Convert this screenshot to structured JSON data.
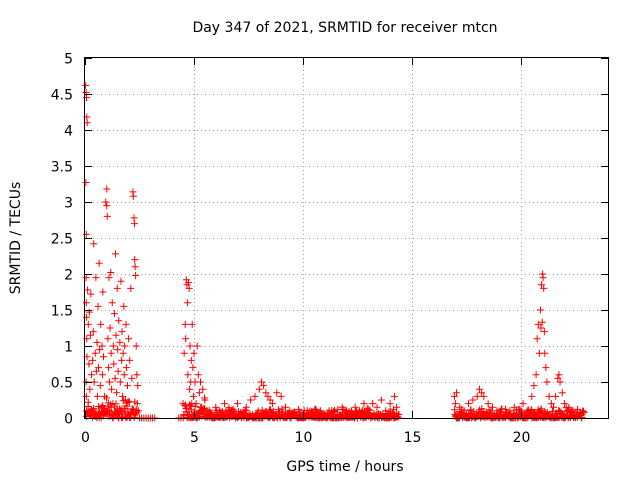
{
  "chart_data": {
    "type": "scatter",
    "title": "Day 347 of 2021, SRMTID for receiver mtcn",
    "xlabel": "GPS time / hours",
    "ylabel": "SRMTID / TECUs",
    "xlim": [
      0,
      24
    ],
    "ylim": [
      0,
      5
    ],
    "xticks": [
      {
        "value": 0,
        "label": "0"
      },
      {
        "value": 5,
        "label": "5"
      },
      {
        "value": 10,
        "label": "10"
      },
      {
        "value": 15,
        "label": "15"
      },
      {
        "value": 20,
        "label": "20"
      }
    ],
    "yticks": [
      {
        "value": 0,
        "label": "0"
      },
      {
        "value": 0.5,
        "label": "0.5"
      },
      {
        "value": 1,
        "label": "1"
      },
      {
        "value": 1.5,
        "label": "1.5"
      },
      {
        "value": 2,
        "label": "2"
      },
      {
        "value": 2.5,
        "label": "2.5"
      },
      {
        "value": 3,
        "label": "3"
      },
      {
        "value": 3.5,
        "label": "3.5"
      },
      {
        "value": 4,
        "label": "4"
      },
      {
        "value": 4.5,
        "label": "4.5"
      },
      {
        "value": 5,
        "label": "5"
      }
    ],
    "grid": true,
    "marker": "plus",
    "color": "#ff0000",
    "series": [
      {
        "name": "SRMTID",
        "points": [
          [
            0.03,
            4.62
          ],
          [
            0.05,
            4.52
          ],
          [
            0.07,
            4.45
          ],
          [
            0.08,
            4.18
          ],
          [
            0.1,
            4.1
          ],
          [
            0.04,
            3.27
          ],
          [
            0.06,
            2.55
          ],
          [
            0.05,
            1.95
          ],
          [
            0.06,
            1.6
          ],
          [
            0.07,
            1.4
          ],
          [
            0.08,
            1.1
          ],
          [
            0.09,
            0.85
          ],
          [
            0.05,
            0.5
          ],
          [
            0.06,
            0.3
          ],
          [
            0.07,
            0.1
          ],
          [
            0.08,
            0.02
          ],
          [
            0.12,
            1.78
          ],
          [
            0.15,
            1.3
          ],
          [
            0.18,
            0.75
          ],
          [
            0.2,
            1.47
          ],
          [
            0.22,
            0.4
          ],
          [
            0.25,
            1.15
          ],
          [
            0.27,
            1.72
          ],
          [
            0.3,
            0.6
          ],
          [
            0.32,
            0.1
          ],
          [
            0.35,
            0.8
          ],
          [
            0.38,
            1.2
          ],
          [
            0.4,
            2.42
          ],
          [
            0.42,
            0.5
          ],
          [
            0.45,
            0.05
          ],
          [
            0.47,
            0.9
          ],
          [
            0.5,
            1.95
          ],
          [
            0.52,
            0.65
          ],
          [
            0.55,
            1.05
          ],
          [
            0.57,
            0.3
          ],
          [
            0.6,
            1.55
          ],
          [
            0.62,
            0.7
          ],
          [
            0.65,
            2.15
          ],
          [
            0.67,
            0.95
          ],
          [
            0.7,
            0.45
          ],
          [
            0.72,
            1.3
          ],
          [
            0.75,
            0.15
          ],
          [
            0.78,
            1.0
          ],
          [
            0.8,
            0.6
          ],
          [
            0.82,
            1.75
          ],
          [
            0.85,
            0.85
          ],
          [
            0.9,
            0.3
          ],
          [
            0.95,
            3.0
          ],
          [
            1.0,
            3.18
          ],
          [
            1.0,
            2.95
          ],
          [
            1.02,
            2.8
          ],
          [
            1.05,
            1.1
          ],
          [
            1.08,
            0.7
          ],
          [
            1.1,
            1.95
          ],
          [
            1.12,
            0.5
          ],
          [
            1.15,
            1.25
          ],
          [
            1.18,
            2.02
          ],
          [
            1.2,
            0.9
          ],
          [
            1.22,
            0.4
          ],
          [
            1.25,
            1.6
          ],
          [
            1.28,
            0.2
          ],
          [
            1.3,
            1.0
          ],
          [
            1.32,
            0.75
          ],
          [
            1.35,
            1.45
          ],
          [
            1.38,
            0.55
          ],
          [
            1.4,
            2.28
          ],
          [
            1.42,
            1.15
          ],
          [
            1.45,
            0.35
          ],
          [
            1.48,
            1.8
          ],
          [
            1.5,
            0.95
          ],
          [
            1.52,
            0.65
          ],
          [
            1.55,
            1.35
          ],
          [
            1.58,
            0.1
          ],
          [
            1.6,
            1.05
          ],
          [
            1.62,
            0.5
          ],
          [
            1.65,
            1.9
          ],
          [
            1.68,
            0.8
          ],
          [
            1.7,
            1.2
          ],
          [
            1.72,
            0.3
          ],
          [
            1.75,
            0.9
          ],
          [
            1.78,
            1.55
          ],
          [
            1.8,
            0.6
          ],
          [
            1.82,
            1.0
          ],
          [
            1.85,
            0.25
          ],
          [
            1.88,
            1.3
          ],
          [
            1.9,
            0.7
          ],
          [
            1.95,
            0.45
          ],
          [
            2.0,
            1.1
          ],
          [
            2.05,
            0.8
          ],
          [
            2.1,
            1.8
          ],
          [
            2.15,
            0.55
          ],
          [
            2.2,
            3.14
          ],
          [
            2.22,
            3.08
          ],
          [
            2.25,
            2.78
          ],
          [
            2.27,
            2.7
          ],
          [
            2.28,
            2.2
          ],
          [
            2.3,
            2.1
          ],
          [
            2.32,
            1.98
          ],
          [
            2.35,
            1.0
          ],
          [
            2.38,
            0.6
          ],
          [
            2.4,
            0.2
          ],
          [
            2.42,
            0.45
          ],
          [
            2.45,
            0.1
          ],
          [
            2.5,
            0.0
          ],
          [
            2.6,
            0.0
          ],
          [
            2.7,
            0.0
          ],
          [
            2.8,
            0.0
          ],
          [
            2.9,
            0.0
          ],
          [
            3.0,
            0.0
          ],
          [
            3.1,
            0.0
          ],
          [
            3.2,
            0.0
          ],
          [
            4.3,
            0.0
          ],
          [
            4.4,
            0.0
          ],
          [
            4.5,
            0.2
          ],
          [
            4.55,
            0.9
          ],
          [
            4.6,
            1.3
          ],
          [
            4.62,
            1.1
          ],
          [
            4.65,
            1.92
          ],
          [
            4.68,
            1.85
          ],
          [
            4.7,
            1.6
          ],
          [
            4.72,
            0.6
          ],
          [
            4.75,
            1.88
          ],
          [
            4.78,
            1.8
          ],
          [
            4.8,
            0.4
          ],
          [
            4.82,
            1.0
          ],
          [
            4.85,
            0.5
          ],
          [
            4.88,
            0.8
          ],
          [
            4.9,
            0.2
          ],
          [
            4.92,
            1.3
          ],
          [
            4.95,
            0.7
          ],
          [
            4.98,
            0.3
          ],
          [
            5.0,
            0.9
          ],
          [
            5.05,
            0.5
          ],
          [
            5.1,
            0.2
          ],
          [
            5.15,
            1.0
          ],
          [
            5.2,
            0.6
          ],
          [
            5.25,
            0.35
          ],
          [
            5.3,
            0.5
          ],
          [
            5.35,
            0.15
          ],
          [
            5.4,
            0.4
          ],
          [
            5.45,
            0.1
          ],
          [
            5.5,
            0.25
          ],
          [
            5.6,
            0.1
          ],
          [
            5.8,
            0.05
          ],
          [
            6.0,
            0.15
          ],
          [
            6.2,
            0.08
          ],
          [
            6.4,
            0.2
          ],
          [
            6.6,
            0.1
          ],
          [
            6.8,
            0.12
          ],
          [
            7.0,
            0.2
          ],
          [
            7.2,
            0.05
          ],
          [
            7.4,
            0.15
          ],
          [
            7.6,
            0.25
          ],
          [
            7.8,
            0.3
          ],
          [
            8.0,
            0.4
          ],
          [
            8.1,
            0.5
          ],
          [
            8.2,
            0.45
          ],
          [
            8.3,
            0.35
          ],
          [
            8.4,
            0.3
          ],
          [
            8.5,
            0.25
          ],
          [
            8.6,
            0.2
          ],
          [
            8.8,
            0.35
          ],
          [
            9.0,
            0.3
          ],
          [
            9.2,
            0.15
          ],
          [
            9.4,
            0.1
          ],
          [
            9.6,
            0.08
          ],
          [
            9.8,
            0.12
          ],
          [
            10.0,
            0.05
          ],
          [
            10.2,
            0.1
          ],
          [
            10.4,
            0.08
          ],
          [
            10.6,
            0.12
          ],
          [
            10.8,
            0.1
          ],
          [
            11.0,
            0.05
          ],
          [
            11.2,
            0.1
          ],
          [
            11.4,
            0.08
          ],
          [
            11.6,
            0.12
          ],
          [
            11.8,
            0.15
          ],
          [
            12.0,
            0.1
          ],
          [
            12.2,
            0.08
          ],
          [
            12.4,
            0.15
          ],
          [
            12.6,
            0.1
          ],
          [
            12.8,
            0.2
          ],
          [
            13.0,
            0.12
          ],
          [
            13.2,
            0.2
          ],
          [
            13.4,
            0.15
          ],
          [
            13.6,
            0.25
          ],
          [
            13.8,
            0.1
          ],
          [
            14.0,
            0.2
          ],
          [
            14.2,
            0.3
          ],
          [
            14.3,
            0.15
          ],
          [
            14.4,
            0.05
          ],
          [
            16.95,
            0.3
          ],
          [
            17.0,
            0.2
          ],
          [
            17.05,
            0.35
          ],
          [
            17.2,
            0.15
          ],
          [
            17.4,
            0.1
          ],
          [
            17.6,
            0.2
          ],
          [
            17.8,
            0.25
          ],
          [
            18.0,
            0.3
          ],
          [
            18.1,
            0.4
          ],
          [
            18.2,
            0.35
          ],
          [
            18.3,
            0.3
          ],
          [
            18.5,
            0.2
          ],
          [
            18.7,
            0.15
          ],
          [
            18.9,
            0.1
          ],
          [
            19.1,
            0.12
          ],
          [
            19.3,
            0.08
          ],
          [
            19.5,
            0.1
          ],
          [
            19.7,
            0.15
          ],
          [
            19.9,
            0.12
          ],
          [
            20.1,
            0.2
          ],
          [
            20.3,
            0.1
          ],
          [
            20.5,
            0.3
          ],
          [
            20.6,
            0.45
          ],
          [
            20.7,
            0.6
          ],
          [
            20.75,
            1.1
          ],
          [
            20.8,
            1.3
          ],
          [
            20.85,
            0.9
          ],
          [
            20.9,
            1.5
          ],
          [
            20.92,
            1.25
          ],
          [
            20.95,
            1.85
          ],
          [
            20.98,
            1.33
          ],
          [
            21.0,
            2.0
          ],
          [
            21.02,
            1.95
          ],
          [
            21.05,
            1.8
          ],
          [
            21.08,
            1.2
          ],
          [
            21.1,
            0.9
          ],
          [
            21.15,
            0.7
          ],
          [
            21.2,
            0.5
          ],
          [
            21.3,
            0.3
          ],
          [
            21.4,
            0.2
          ],
          [
            21.5,
            0.15
          ],
          [
            21.6,
            0.3
          ],
          [
            21.7,
            0.55
          ],
          [
            21.75,
            0.6
          ],
          [
            21.8,
            0.5
          ],
          [
            21.9,
            0.35
          ],
          [
            22.0,
            0.2
          ],
          [
            22.2,
            0.15
          ],
          [
            22.4,
            0.1
          ],
          [
            22.6,
            0.12
          ],
          [
            22.8,
            0.05
          ]
        ],
        "dense_bands": [
          {
            "x0": 0.1,
            "x1": 2.4,
            "ymax": 0.35
          },
          {
            "x0": 4.5,
            "x1": 5.6,
            "ymax": 0.3
          },
          {
            "x0": 5.6,
            "x1": 14.4,
            "ymax": 0.15
          },
          {
            "x0": 16.95,
            "x1": 22.9,
            "ymax": 0.15
          }
        ]
      }
    ]
  }
}
